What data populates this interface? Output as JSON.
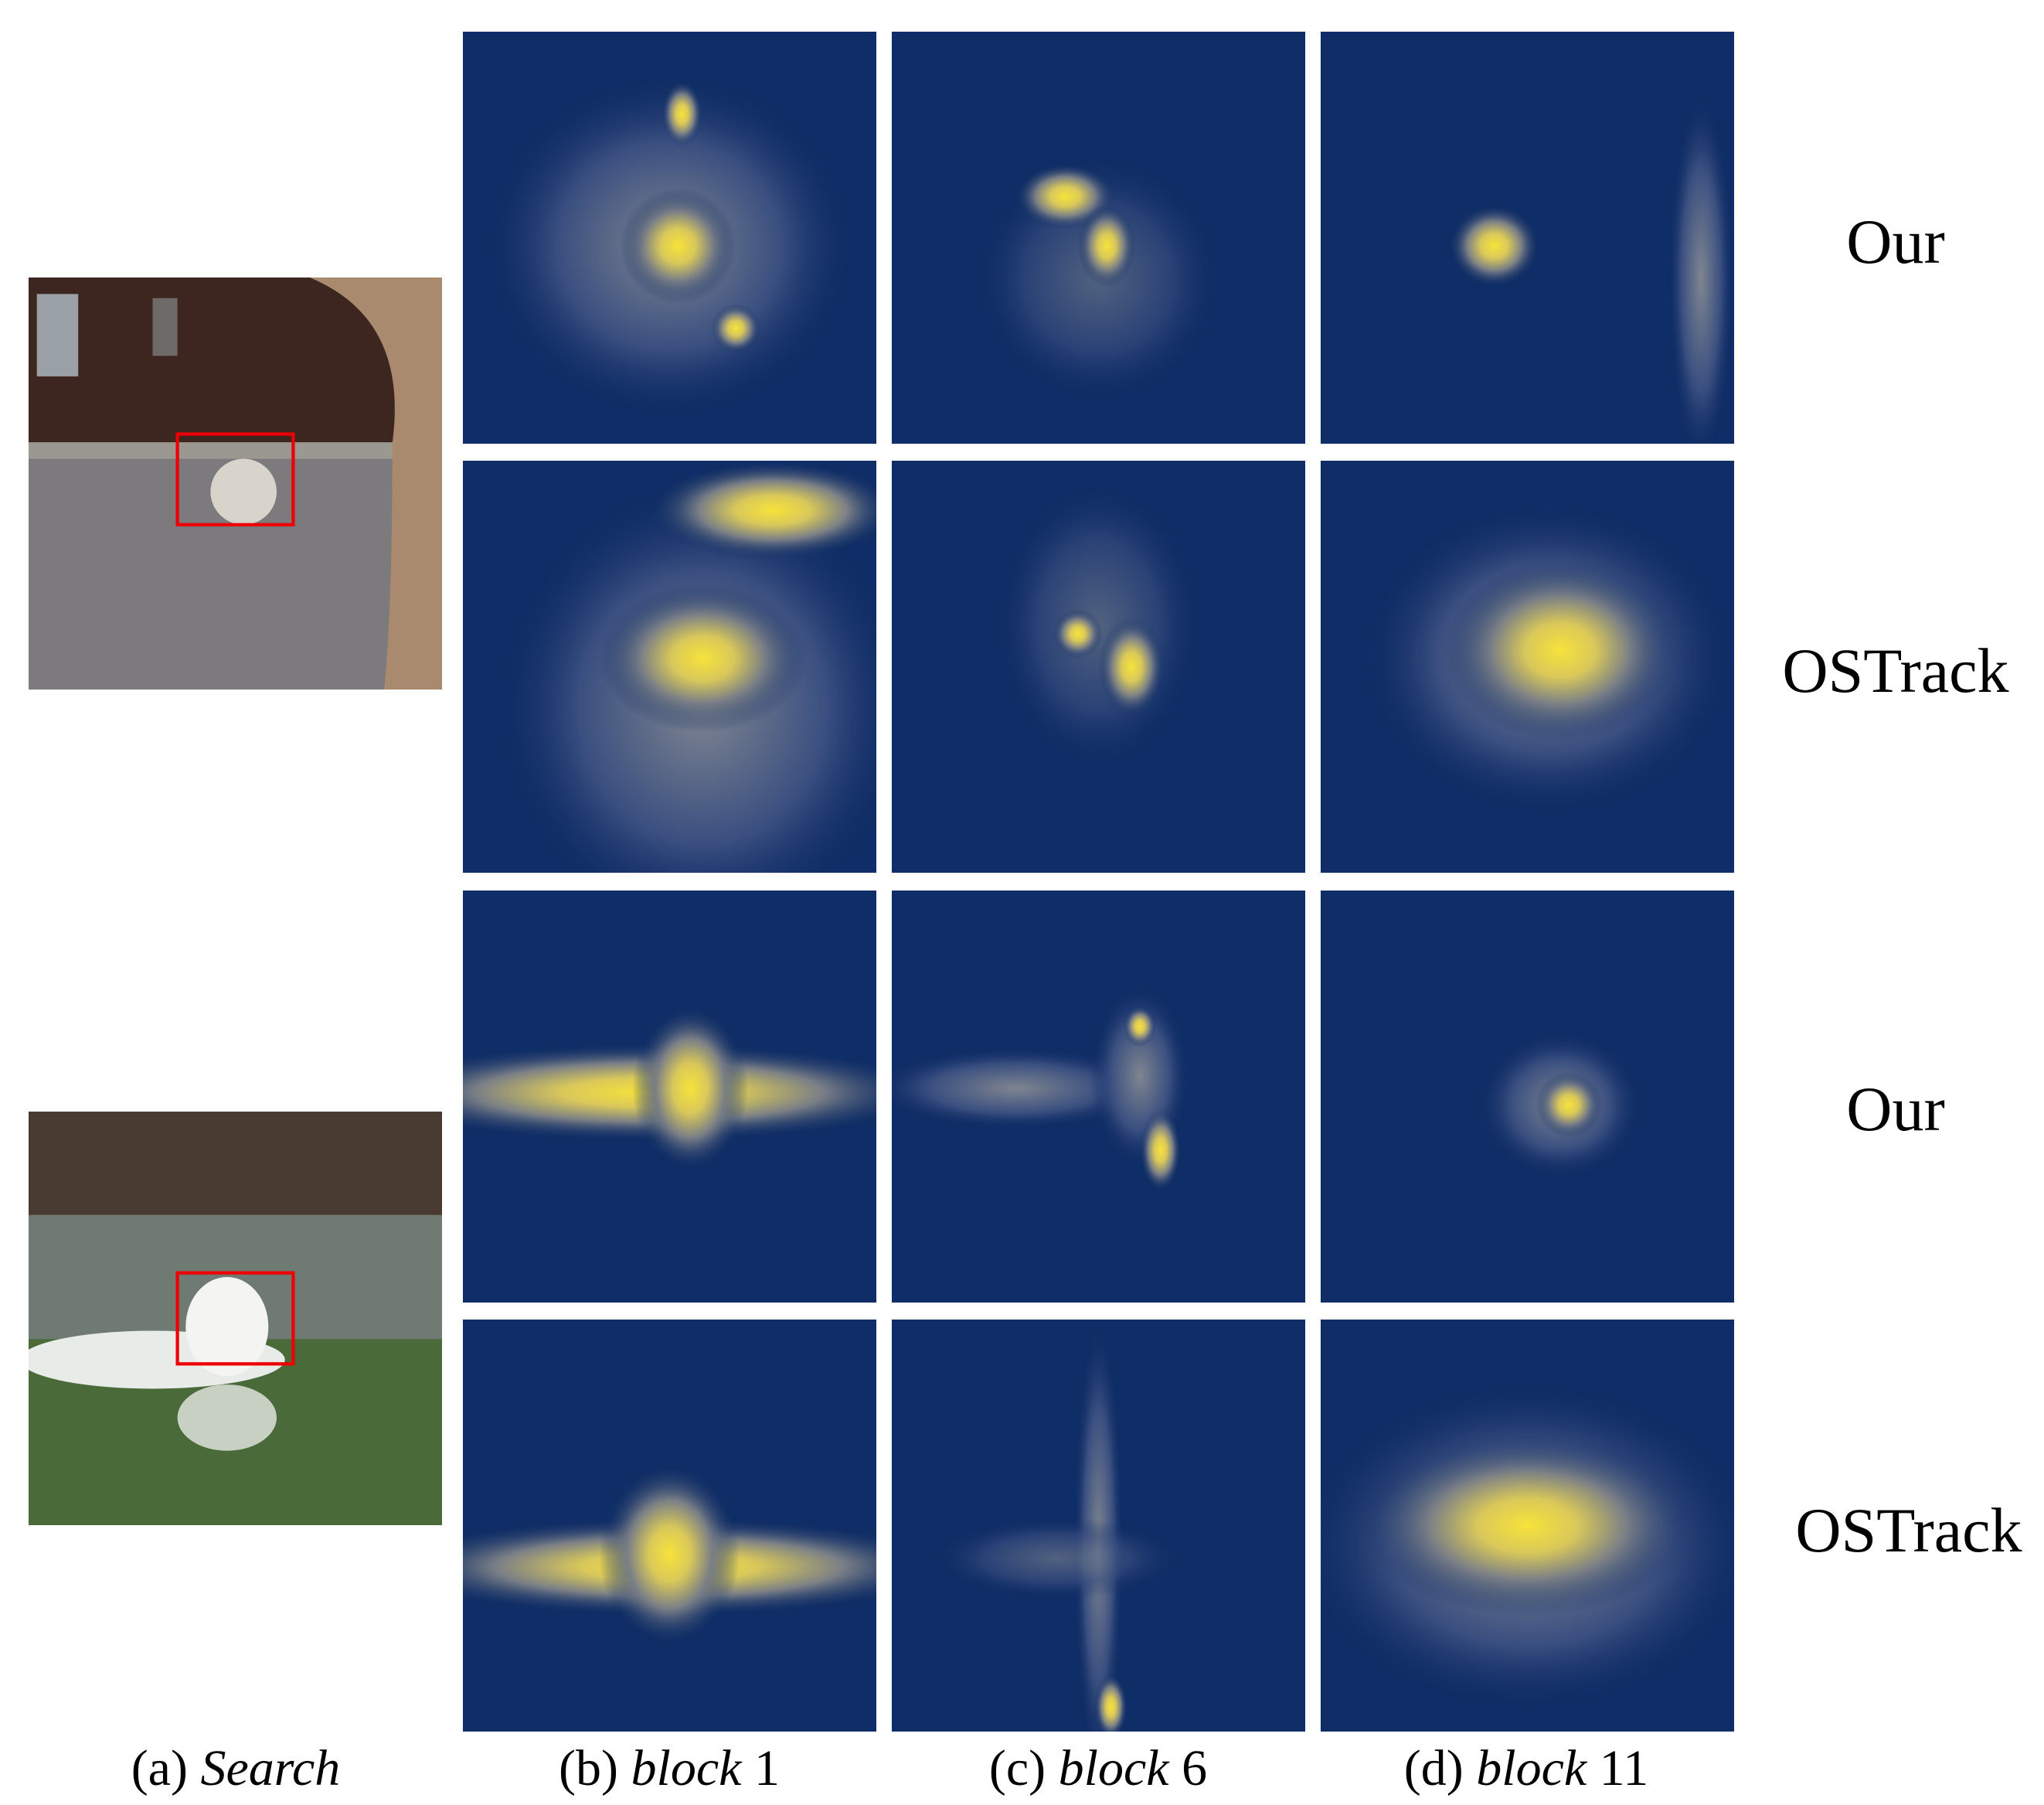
{
  "row_labels": [
    "Our",
    "OSTrack",
    "Our",
    "OSTrack"
  ],
  "captions": [
    {
      "label": "(a)",
      "text": "Search"
    },
    {
      "label": "(b)",
      "text": "block",
      "number": "1"
    },
    {
      "label": "(c)",
      "text": "block",
      "number": "6"
    },
    {
      "label": "(d)",
      "text": "block",
      "number": "11"
    }
  ]
}
